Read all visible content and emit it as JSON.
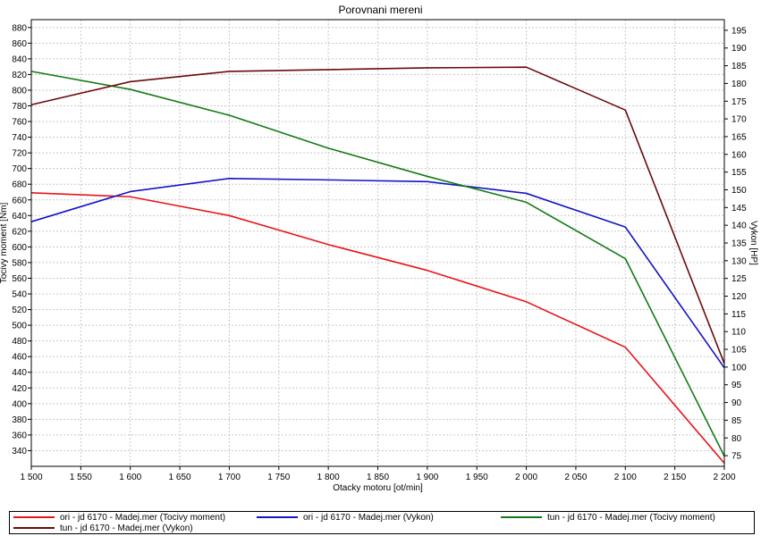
{
  "chart_data": {
    "type": "line",
    "title": "Porovnani mereni",
    "xlabel": "Otacky motoru [ot/min]",
    "ylabel_left": "Tocivy moment [Nm]",
    "ylabel_right": "Vykon [HP]",
    "xlim": [
      1500,
      2200
    ],
    "ylim_left": [
      320,
      890
    ],
    "ylim_right": [
      72,
      198
    ],
    "x_ticks": [
      "1 500",
      "1 550",
      "1 600",
      "1 650",
      "1 700",
      "1 750",
      "1 800",
      "1 850",
      "1 900",
      "1 950",
      "2 000",
      "2 050",
      "2 100",
      "2 150",
      "2 200"
    ],
    "y_left_ticks": [
      "340",
      "360",
      "380",
      "400",
      "420",
      "440",
      "460",
      "480",
      "500",
      "520",
      "540",
      "560",
      "580",
      "600",
      "620",
      "640",
      "660",
      "680",
      "700",
      "720",
      "740",
      "760",
      "780",
      "800",
      "820",
      "840",
      "860",
      "880"
    ],
    "y_right_ticks": [
      "75",
      "80",
      "85",
      "90",
      "95",
      "100",
      "105",
      "110",
      "115",
      "120",
      "125",
      "130",
      "135",
      "140",
      "145",
      "150",
      "155",
      "160",
      "165",
      "170",
      "175",
      "180",
      "185",
      "190",
      "195"
    ],
    "grid": true,
    "legend_position": "bottom",
    "series": [
      {
        "name": "ori - jd 6170 - Madej.mer  (Tocivy moment)",
        "axis": "left",
        "color": "#e8141a",
        "x": [
          1500,
          1600,
          1700,
          1800,
          1900,
          2000,
          2100,
          2200
        ],
        "values": [
          669,
          664,
          640,
          603,
          570,
          530,
          472,
          324
        ]
      },
      {
        "name": "ori - jd 6170 - Madej.mer  (Vykon)",
        "axis": "right",
        "color": "#1414c8",
        "x": [
          1500,
          1600,
          1700,
          1800,
          1900,
          2000,
          2100,
          2200
        ],
        "values": [
          141,
          149.5,
          153.2,
          152.8,
          152.3,
          149,
          139.5,
          99.8
        ]
      },
      {
        "name": "tun - jd 6170 - Madej.mer  (Tocivy moment)",
        "axis": "left",
        "color": "#137a13",
        "x": [
          1500,
          1600,
          1700,
          1800,
          1900,
          2000,
          2100,
          2200
        ],
        "values": [
          824,
          801,
          768,
          726,
          690,
          657,
          585,
          333
        ]
      },
      {
        "name": "tun - jd 6170 - Madej.mer  (Vykon)",
        "axis": "right",
        "color": "#6b0a0a",
        "x": [
          1500,
          1600,
          1700,
          1800,
          1900,
          2000,
          2100,
          2200
        ],
        "values": [
          174,
          180.5,
          183.4,
          183.9,
          184.4,
          184.6,
          172.5,
          101
        ]
      }
    ]
  }
}
